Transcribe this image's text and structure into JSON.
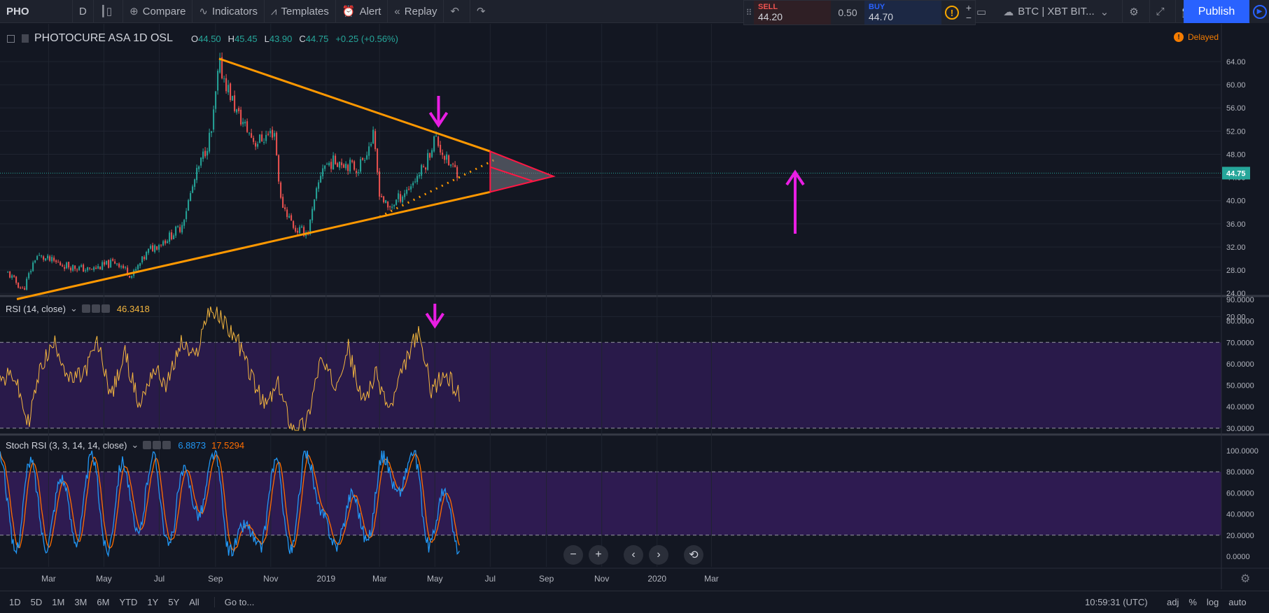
{
  "toolbar": {
    "symbol": "PHO",
    "interval": "D",
    "compare": "Compare",
    "indicators": "Indicators",
    "templates": "Templates",
    "alert": "Alert",
    "replay": "Replay",
    "sell_label": "SELL",
    "sell_price": "44.20",
    "spread": "0.50",
    "buy_label": "BUY",
    "buy_price": "44.70",
    "warning_icon": "!",
    "watch_symbol": "BTC | XBT BIT...",
    "publish": "Publish",
    "plus": "+",
    "minus": "−"
  },
  "legend": {
    "title": "PHOTOCURE ASA  1D  OSL",
    "o_label": "O",
    "o": "44.50",
    "h_label": "H",
    "h": "45.45",
    "l_label": "L",
    "l": "43.90",
    "c_label": "C",
    "c": "44.75",
    "change": "+0.25 (+0.56%)",
    "delayed": "Delayed"
  },
  "rsi": {
    "name": "RSI (14, close)",
    "value": "46.3418"
  },
  "stoch": {
    "name": "Stoch RSI (3, 3, 14, 14, close)",
    "k": "6.8873",
    "d": "17.5294"
  },
  "colors": {
    "bg": "#131722",
    "up": "#26a69a",
    "down": "#ef5350",
    "trendline": "#ff9800",
    "forecast": "#ff1744",
    "arrow": "#e91ee3",
    "rsi_line": "#f4b63f",
    "band": "#3d1d6b",
    "stoch_k": "#2196f3",
    "stoch_d": "#ff6d00"
  },
  "price_axis": {
    "ticks": [
      "64.00",
      "60.00",
      "56.00",
      "52.00",
      "48.00",
      "44.00",
      "40.00",
      "36.00",
      "32.00",
      "28.00",
      "24.00",
      "20.00"
    ],
    "last_price": "44.75"
  },
  "rsi_axis": {
    "ticks": [
      "90.0000",
      "80.0000",
      "70.0000",
      "60.0000",
      "50.0000",
      "40.0000",
      "30.0000"
    ]
  },
  "stoch_axis": {
    "ticks": [
      "100.0000",
      "80.0000",
      "60.0000",
      "40.0000",
      "20.0000",
      "0.0000"
    ]
  },
  "time_axis": {
    "labels": [
      "Mar",
      "May",
      "Jul",
      "Sep",
      "Nov",
      "2019",
      "Mar",
      "May",
      "Jul",
      "Sep",
      "Nov",
      "2020",
      "Mar"
    ]
  },
  "bottom": {
    "ranges": [
      "1D",
      "5D",
      "1M",
      "3M",
      "6M",
      "YTD",
      "1Y",
      "5Y",
      "All"
    ],
    "goto": "Go to...",
    "clock": "10:59:31 (UTC)",
    "adj": "adj",
    "pct": "%",
    "log": "log",
    "auto": "auto"
  },
  "chart_data": {
    "type": "candlestick",
    "title": "PHOTOCURE ASA 1D OSL",
    "x_labels": [
      "Mar",
      "May",
      "Jul",
      "Sep",
      "Nov",
      "2019",
      "Mar",
      "May",
      "Jul",
      "Sep",
      "Nov",
      "2020",
      "Mar"
    ],
    "ylim": [
      20,
      66
    ],
    "price_path": [
      {
        "date": "2018-01-15",
        "price": 27.5
      },
      {
        "date": "2018-02-01",
        "price": 24.5
      },
      {
        "date": "2018-02-15",
        "price": 30.5
      },
      {
        "date": "2018-03-15",
        "price": 29.0
      },
      {
        "date": "2018-04-15",
        "price": 28.0
      },
      {
        "date": "2018-05-15",
        "price": 29.5
      },
      {
        "date": "2018-06-01",
        "price": 27.0
      },
      {
        "date": "2018-06-20",
        "price": 31.5
      },
      {
        "date": "2018-07-10",
        "price": 33.5
      },
      {
        "date": "2018-07-25",
        "price": 35.5
      },
      {
        "date": "2018-08-10",
        "price": 44.0
      },
      {
        "date": "2018-08-28",
        "price": 52.0
      },
      {
        "date": "2018-09-05",
        "price": 63.5
      },
      {
        "date": "2018-09-25",
        "price": 55.0
      },
      {
        "date": "2018-10-15",
        "price": 50.0
      },
      {
        "date": "2018-11-05",
        "price": 52.0
      },
      {
        "date": "2018-11-12",
        "price": 40.0
      },
      {
        "date": "2018-11-28",
        "price": 35.0
      },
      {
        "date": "2018-12-12",
        "price": 34.5
      },
      {
        "date": "2018-12-28",
        "price": 46.0
      },
      {
        "date": "2019-01-15",
        "price": 47.0
      },
      {
        "date": "2019-02-05",
        "price": 45.5
      },
      {
        "date": "2019-02-22",
        "price": 51.0
      },
      {
        "date": "2019-03-01",
        "price": 41.5
      },
      {
        "date": "2019-03-10",
        "price": 38.5
      },
      {
        "date": "2019-04-01",
        "price": 42.0
      },
      {
        "date": "2019-04-20",
        "price": 46.0
      },
      {
        "date": "2019-05-01",
        "price": 51.0
      },
      {
        "date": "2019-05-15",
        "price": 46.5
      },
      {
        "date": "2019-05-28",
        "price": 44.75
      }
    ],
    "trendlines": [
      {
        "name": "upper",
        "from": {
          "date": "2018-09-05",
          "price": 64.5
        },
        "to": {
          "date": "2019-07-01",
          "price": 48.5
        }
      },
      {
        "name": "lower",
        "from": {
          "date": "2018-01-25",
          "price": 23.0
        },
        "to": {
          "date": "2019-07-01",
          "price": 41.5
        }
      }
    ],
    "last_price": 44.75,
    "rsi": {
      "ylim": [
        28,
        90
      ],
      "bands": [
        30,
        70
      ],
      "path": [
        52,
        55,
        32,
        60,
        70,
        52,
        55,
        70,
        45,
        65,
        40,
        58,
        50,
        70,
        62,
        86,
        80,
        72,
        55,
        40,
        50,
        30,
        32,
        62,
        50,
        68,
        42,
        55,
        38,
        58,
        75,
        48,
        55,
        46
      ]
    },
    "stoch_rsi": {
      "ylim": [
        0,
        100
      ],
      "bands": [
        20,
        80
      ],
      "k": [
        95,
        5,
        90,
        10,
        75,
        15,
        95,
        5,
        90,
        20,
        95,
        10,
        80,
        40,
        98,
        5,
        30,
        8,
        90,
        5,
        98,
        40,
        10,
        60,
        15,
        95,
        60,
        98,
        10,
        60,
        5
      ]
    }
  }
}
